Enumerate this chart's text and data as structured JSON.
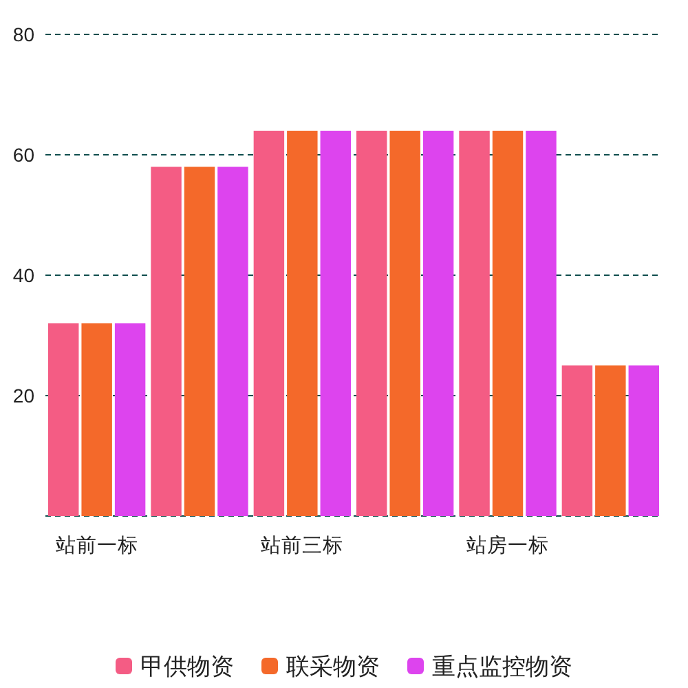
{
  "chart_data": {
    "type": "bar",
    "categories": [
      "站前一标",
      null,
      "站前三标",
      null,
      "站房一标",
      null
    ],
    "series": [
      {
        "name": "甲供物资",
        "color": "#f45c84",
        "values": [
          32,
          58,
          64,
          64,
          64,
          25
        ]
      },
      {
        "name": "联采物资",
        "color": "#f4692a",
        "values": [
          32,
          58,
          64,
          64,
          64,
          25
        ]
      },
      {
        "name": "重点监控物资",
        "color": "#dd44ee",
        "values": [
          32,
          58,
          64,
          64,
          64,
          25
        ]
      }
    ],
    "ylim": [
      0,
      80
    ],
    "yticks": [
      {
        "value": 0,
        "label": null
      },
      20,
      40,
      60,
      80
    ],
    "grid": "y",
    "legend": "bottom"
  }
}
